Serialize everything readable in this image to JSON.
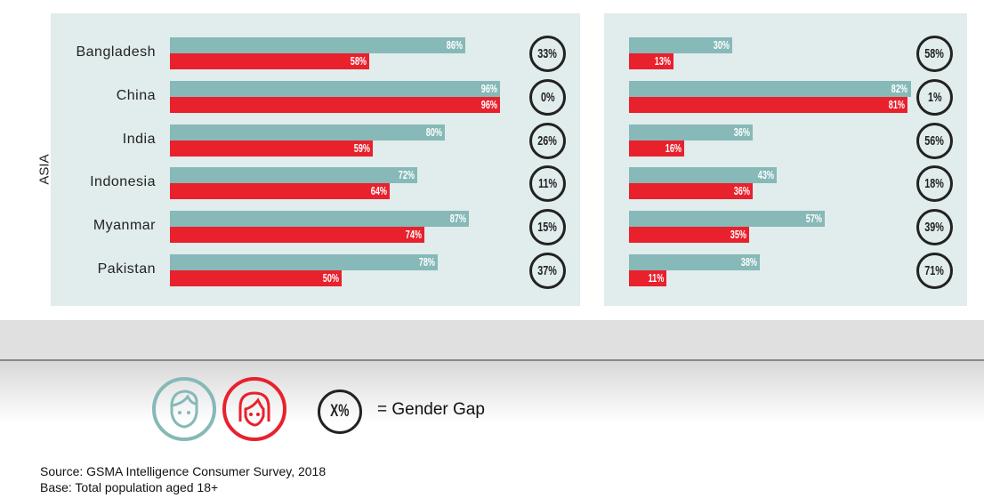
{
  "chart_data": {
    "type": "bar",
    "region_label": "ASIA",
    "categories": [
      "Bangladesh",
      "China",
      "India",
      "Indonesia",
      "Myanmar",
      "Pakistan"
    ],
    "xlim": [
      0,
      100
    ],
    "panels": [
      {
        "series": [
          {
            "name": "Men",
            "values": [
              86,
              96,
              80,
              72,
              87,
              78
            ]
          },
          {
            "name": "Women",
            "values": [
              58,
              96,
              59,
              64,
              74,
              50
            ]
          }
        ],
        "gaps": [
          "33%",
          "0%",
          "26%",
          "11%",
          "15%",
          "37%"
        ]
      },
      {
        "series": [
          {
            "name": "Men",
            "values": [
              30,
              82,
              36,
              43,
              57,
              38
            ]
          },
          {
            "name": "Women",
            "values": [
              13,
              81,
              16,
              36,
              35,
              11
            ]
          }
        ],
        "gaps": [
          "58%",
          "1%",
          "56%",
          "18%",
          "39%",
          "71%"
        ]
      }
    ]
  },
  "legend": {
    "gap_symbol": "X%",
    "gap_text": "= Gender Gap",
    "men_icon": "man-face-icon",
    "women_icon": "woman-face-icon"
  },
  "colors": {
    "men": "#86b9b8",
    "women": "#e8212d",
    "panel": "#e1ecec"
  },
  "source": "Source: GSMA Intelligence Consumer Survey, 2018",
  "base": "Base: Total population aged 18+"
}
